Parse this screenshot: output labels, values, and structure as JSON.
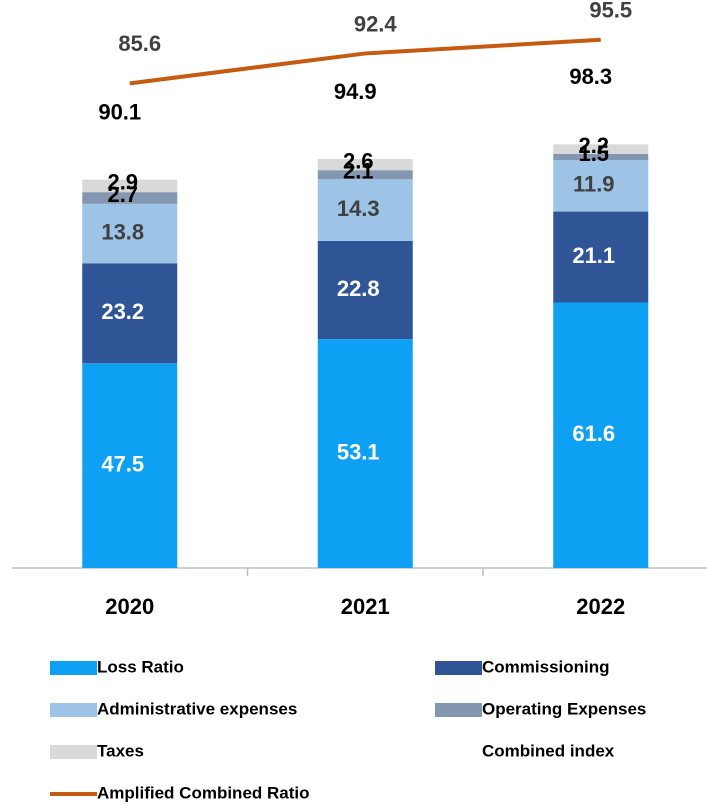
{
  "chart_data": {
    "type": "bar",
    "stacked": true,
    "categories": [
      "2020",
      "2021",
      "2022"
    ],
    "series": [
      {
        "name": "Loss Ratio",
        "color": "#0ea0f2",
        "label_color": "#ffffff",
        "values": [
          47.5,
          53.1,
          61.6
        ]
      },
      {
        "name": "Commissioning",
        "color": "#2f5597",
        "label_color": "#ffffff",
        "values": [
          23.2,
          22.8,
          21.1
        ]
      },
      {
        "name": "Administrative expenses",
        "color": "#9dc3e6",
        "label_color": "#404040",
        "values": [
          13.8,
          14.3,
          11.9
        ]
      },
      {
        "name": "Operating Expenses",
        "color": "#8497b0",
        "label_color": "#000000",
        "values": [
          2.7,
          2.1,
          1.5
        ]
      },
      {
        "name": "Taxes",
        "color": "#d9d9d9",
        "label_color": "#000000",
        "values": [
          2.9,
          2.6,
          2.2
        ]
      },
      {
        "name": "Combined index",
        "label_color": "#000000",
        "values": [
          90.1,
          94.9,
          98.3
        ]
      },
      {
        "name": "Amplified Combined Ratio",
        "type": "line",
        "axis": "y2",
        "color": "#c55a11",
        "label_color": "#404040",
        "values": [
          85.6,
          92.4,
          95.5
        ]
      }
    ],
    "ylim": [
      0,
      100
    ],
    "y2lim": [
      75,
      100
    ]
  }
}
